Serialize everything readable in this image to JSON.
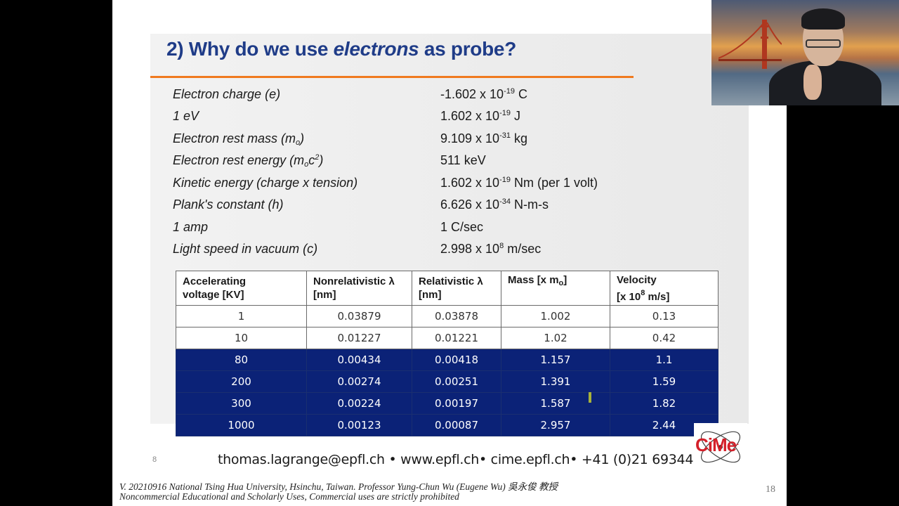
{
  "slide": {
    "title_pre": "2) Why do we use ",
    "title_em": "electrons",
    "title_post": " as probe?",
    "constants": [
      {
        "label": "Electron charge (e)",
        "value_pre": "-1.602 x 10",
        "value_sup": "-19",
        "value_post": " C"
      },
      {
        "label": "1 eV",
        "value_pre": "1.602 x 10",
        "value_sup": "-19",
        "value_post": " J"
      },
      {
        "label_pre": "Electron rest mass (m",
        "label_sub": "o",
        "label_post": ")",
        "value_pre": "9.109 x 10",
        "value_sup": "-31",
        "value_post": " kg"
      },
      {
        "label_pre": "Electron rest energy (m",
        "label_sub": "o",
        "label_mid": "c",
        "label_sup": "2",
        "label_post": ")",
        "value": "511 keV"
      },
      {
        "label": "Kinetic energy (charge x tension)",
        "value_pre": "1.602 x 10",
        "value_sup": "-19",
        "value_post": " Nm (per 1 volt)"
      },
      {
        "label": "Plank's constant (h)",
        "value_pre": "6.626 x 10",
        "value_sup": "-34",
        "value_post": " N-m-s"
      },
      {
        "label": "1 amp",
        "value": "1 C/sec"
      },
      {
        "label": "Light speed in vacuum (c)",
        "value_pre": "2.998 x 10",
        "value_sup": "8",
        "value_post": " m/sec"
      }
    ],
    "table": {
      "headers": [
        {
          "line1": "Accelerating",
          "line2": "voltage [KV]"
        },
        {
          "line1": "Nonrelativistic λ",
          "line2": "[nm]"
        },
        {
          "line1": "Relativistic λ",
          "line2": "[nm]"
        },
        {
          "line1_pre": "Mass [x m",
          "line1_sub": "o",
          "line1_post": "]"
        },
        {
          "line1": "Velocity",
          "line2_pre": "[x 10",
          "line2_sup": "8",
          "line2_post": " m/s]"
        }
      ],
      "rows": [
        {
          "cells": [
            "1",
            "0.03879",
            "0.03878",
            "1.002",
            "0.13"
          ],
          "style": "white"
        },
        {
          "cells": [
            "10",
            "0.01227",
            "0.01221",
            "1.02",
            "0.42"
          ],
          "style": "white"
        },
        {
          "cells": [
            "80",
            "0.00434",
            "0.00418",
            "1.157",
            "1.1"
          ],
          "style": "blue"
        },
        {
          "cells": [
            "200",
            "0.00274",
            "0.00251",
            "1.391",
            "1.59"
          ],
          "style": "blue"
        },
        {
          "cells": [
            "300",
            "0.00224",
            "0.00197",
            "1.587",
            "1.82"
          ],
          "style": "blue"
        },
        {
          "cells": [
            "1000",
            "0.00123",
            "0.00087",
            "2.957",
            "2.44"
          ],
          "style": "blue"
        }
      ]
    },
    "page_num_left": "8",
    "footer_contact": "thomas.lagrange@epfl.ch • www.epfl.ch• cime.epfl.ch• +41 (0)21 6934430",
    "logo_text": "CiMe",
    "logo_accent": "-",
    "colors": {
      "title": "#1f3c88",
      "rule": "#f07a1f",
      "table_highlight": "#0b2277",
      "logo": "#d4202a"
    }
  },
  "credits": {
    "line1": "V. 20210916 National Tsing Hua University, Hsinchu, Taiwan. Professor Yung-Chun Wu (Eugene Wu) 吳永俊 教授",
    "line2": "Noncommercial Educational and Scholarly Uses, Commercial uses are strictly prohibited"
  },
  "slide_number": "18"
}
